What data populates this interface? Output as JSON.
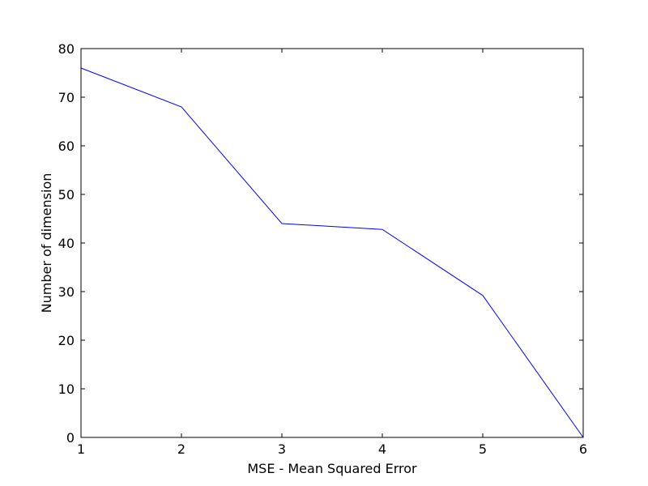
{
  "chart_data": {
    "type": "line",
    "title": "",
    "xlabel": "MSE - Mean Squared Error",
    "ylabel": "Number of dimension",
    "xlim": [
      1,
      6
    ],
    "ylim": [
      0,
      80
    ],
    "xticks": [
      1,
      2,
      3,
      4,
      5,
      6
    ],
    "yticks": [
      0,
      10,
      20,
      30,
      40,
      50,
      60,
      70,
      80
    ],
    "grid": false,
    "series": [
      {
        "color": "#0000ff",
        "x": [
          1,
          2,
          3,
          4,
          5,
          6
        ],
        "y": [
          76,
          68,
          44,
          42.8,
          29.2,
          0
        ]
      }
    ]
  }
}
